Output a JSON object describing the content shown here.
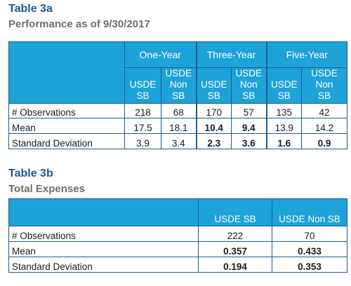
{
  "table3a": {
    "label": "Table 3a",
    "title": "Performance as of 9/30/2017",
    "groups": [
      "One-Year",
      "Three-Year",
      "Five-Year"
    ],
    "sub_a": [
      "USDE",
      "SB"
    ],
    "sub_b": [
      "USDE",
      "Non",
      "SB"
    ],
    "rows": [
      {
        "label": "# Observations",
        "values": [
          "218",
          "68",
          "170",
          "57",
          "135",
          "42"
        ]
      },
      {
        "label": "Mean",
        "values": [
          "17.5",
          "18.1",
          "10.4",
          "9.4",
          "13.9",
          "14.2"
        ]
      },
      {
        "label": "Standard Deviation",
        "values": [
          "3.9",
          "3.4",
          "2.3",
          "3.6",
          "1.6",
          "0.9"
        ]
      }
    ]
  },
  "table3b": {
    "label": "Table 3b",
    "title": "Total Expenses",
    "cols": [
      "USDE SB",
      "USDE Non SB"
    ],
    "rows": [
      {
        "label": "# Observations",
        "values": [
          "222",
          "70"
        ]
      },
      {
        "label": "Mean",
        "values": [
          "0.357",
          "0.433"
        ]
      },
      {
        "label": "Standard Deviation",
        "values": [
          "0.194",
          "0.353"
        ]
      }
    ]
  }
}
